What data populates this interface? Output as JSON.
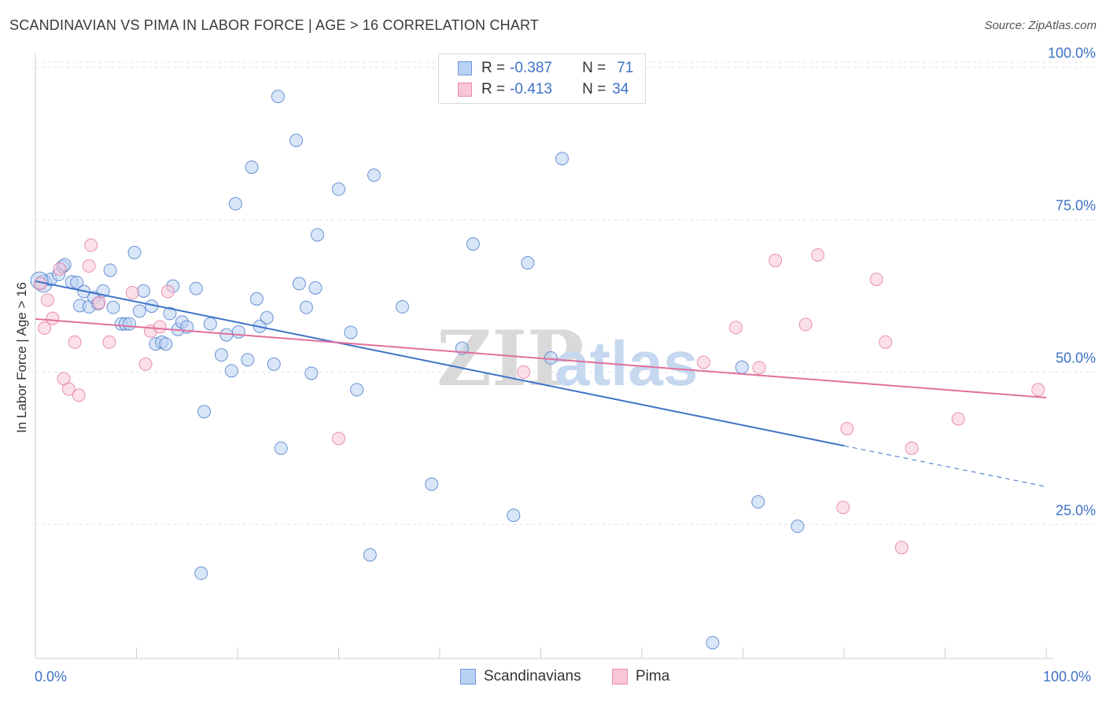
{
  "title": "SCANDINAVIAN VS PIMA IN LABOR FORCE | AGE > 16 CORRELATION CHART",
  "source": "Source: ZipAtlas.com",
  "watermark": {
    "zip": "ZIP",
    "atlas": "atlas"
  },
  "legend": {
    "rows": [
      {
        "r_label": "R =",
        "r_value": "-0.387",
        "n_label": "N =",
        "n_value": "71",
        "fill": "#b9d1f3",
        "stroke": "#6f9ad9"
      },
      {
        "r_label": "R =",
        "r_value": "-0.413",
        "n_label": "N =",
        "n_value": "34",
        "fill": "#f9c6d5",
        "stroke": "#e98aa8"
      }
    ]
  },
  "chart_data": {
    "type": "scatter",
    "title": "SCANDINAVIAN VS PIMA IN LABOR FORCE | AGE > 16 CORRELATION CHART",
    "xlabel": "",
    "ylabel": "In Labor Force | Age > 16",
    "xlim": [
      0,
      100
    ],
    "ylim": [
      3,
      102
    ],
    "x_tick_labels": [
      "0.0%",
      "100.0%"
    ],
    "y_ticks": [
      25,
      50,
      75,
      100
    ],
    "y_tick_labels": [
      "25.0%",
      "50.0%",
      "75.0%",
      "100.0%"
    ],
    "grid": true,
    "legend_position": "bottom",
    "series": [
      {
        "name": "Scandinavians",
        "color": "#3d72c6",
        "fill": "#b9d1f3",
        "points": [
          [
            0.8,
            64.5
          ],
          [
            1.5,
            65.2
          ],
          [
            2.3,
            66.0
          ],
          [
            2.7,
            67.3
          ],
          [
            2.9,
            67.6
          ],
          [
            3.6,
            64.8
          ],
          [
            4.1,
            64.7
          ],
          [
            4.4,
            60.9
          ],
          [
            4.8,
            63.2
          ],
          [
            5.3,
            60.7
          ],
          [
            5.8,
            62.2
          ],
          [
            6.2,
            61.2
          ],
          [
            6.7,
            63.3
          ],
          [
            7.4,
            66.7
          ],
          [
            7.7,
            60.6
          ],
          [
            8.5,
            57.9
          ],
          [
            8.9,
            57.9
          ],
          [
            9.3,
            57.9
          ],
          [
            9.8,
            69.6
          ],
          [
            10.3,
            60.0
          ],
          [
            10.7,
            63.3
          ],
          [
            11.5,
            60.8
          ],
          [
            11.9,
            54.6
          ],
          [
            12.5,
            54.9
          ],
          [
            12.9,
            54.6
          ],
          [
            13.3,
            59.6
          ],
          [
            13.6,
            64.1
          ],
          [
            14.1,
            57.0
          ],
          [
            14.5,
            58.2
          ],
          [
            15.0,
            57.4
          ],
          [
            15.9,
            63.7
          ],
          [
            16.4,
            17.0
          ],
          [
            16.7,
            43.5
          ],
          [
            17.3,
            57.9
          ],
          [
            18.4,
            52.8
          ],
          [
            18.9,
            56.1
          ],
          [
            19.4,
            50.2
          ],
          [
            19.8,
            77.6
          ],
          [
            20.1,
            56.6
          ],
          [
            21.0,
            52.0
          ],
          [
            21.4,
            83.6
          ],
          [
            21.9,
            62.0
          ],
          [
            22.2,
            57.5
          ],
          [
            22.9,
            58.9
          ],
          [
            23.6,
            51.3
          ],
          [
            24.0,
            95.2
          ],
          [
            24.3,
            37.5
          ],
          [
            25.8,
            88.0
          ],
          [
            26.1,
            64.5
          ],
          [
            26.8,
            60.6
          ],
          [
            27.3,
            49.8
          ],
          [
            27.7,
            63.8
          ],
          [
            27.9,
            72.5
          ],
          [
            30.0,
            80.0
          ],
          [
            31.2,
            56.5
          ],
          [
            31.8,
            47.1
          ],
          [
            33.1,
            20.0
          ],
          [
            33.5,
            82.3
          ],
          [
            36.3,
            60.7
          ],
          [
            39.2,
            31.6
          ],
          [
            42.2,
            53.9
          ],
          [
            43.3,
            71.0
          ],
          [
            47.3,
            26.5
          ],
          [
            48.7,
            67.9
          ],
          [
            51.0,
            52.3
          ],
          [
            52.1,
            85.0
          ],
          [
            67.0,
            5.6
          ],
          [
            69.9,
            50.8
          ],
          [
            71.5,
            28.7
          ],
          [
            75.4,
            24.7
          ],
          [
            0.4,
            65.0
          ]
        ]
      },
      {
        "name": "Pima",
        "color": "#e0709a",
        "fill": "#f9c6d5",
        "points": [
          [
            0.5,
            64.5
          ],
          [
            0.9,
            57.2
          ],
          [
            1.2,
            61.8
          ],
          [
            1.7,
            58.8
          ],
          [
            2.4,
            66.9
          ],
          [
            2.8,
            48.9
          ],
          [
            3.3,
            47.2
          ],
          [
            3.9,
            54.9
          ],
          [
            4.3,
            46.2
          ],
          [
            5.3,
            67.4
          ],
          [
            5.5,
            70.8
          ],
          [
            6.3,
            61.4
          ],
          [
            7.3,
            54.9
          ],
          [
            9.6,
            63.0
          ],
          [
            10.9,
            51.3
          ],
          [
            11.4,
            56.7
          ],
          [
            12.3,
            57.4
          ],
          [
            13.1,
            63.2
          ],
          [
            30.0,
            39.1
          ],
          [
            48.3,
            50.0
          ],
          [
            66.1,
            51.6
          ],
          [
            69.3,
            57.3
          ],
          [
            71.6,
            50.7
          ],
          [
            73.2,
            68.3
          ],
          [
            76.2,
            57.8
          ],
          [
            77.4,
            69.2
          ],
          [
            79.9,
            27.8
          ],
          [
            80.3,
            40.7
          ],
          [
            83.2,
            65.2
          ],
          [
            84.1,
            54.9
          ],
          [
            85.7,
            21.2
          ],
          [
            86.7,
            37.5
          ],
          [
            91.3,
            42.3
          ],
          [
            99.2,
            47.1
          ]
        ]
      }
    ],
    "trend_lines": [
      {
        "series": "Scandinavians",
        "x0": 0,
        "y0": 64.9,
        "x1": 80,
        "y1": 37.9,
        "dashed_to_x": 100,
        "dashed_to_y": 31.2
      },
      {
        "series": "Pima",
        "x0": 0,
        "y0": 58.7,
        "x1": 100,
        "y1": 45.8
      }
    ]
  }
}
